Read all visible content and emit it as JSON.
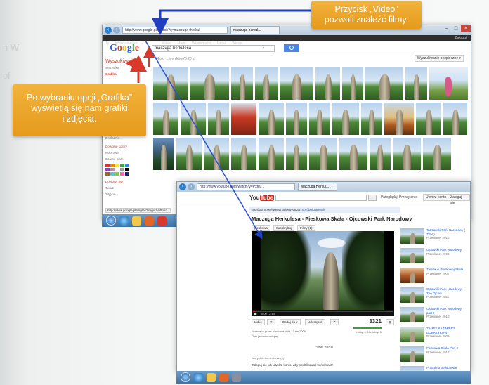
{
  "callouts": {
    "video": [
      "Przycisk „Video”",
      "pozwoli znaleźć filmy."
    ],
    "grafika": [
      "Po wybraniu opcji „Grafika”",
      "wyświetlą się nam grafiki",
      "i zdjęcia."
    ]
  },
  "google_window": {
    "address": "http://www.google.pl/search?q=maczuga+herkul",
    "tab_title": "maczuga herkul...",
    "nav_items": [
      "Ty",
      "Wyszukiwarka",
      "Grafika",
      "Wideo",
      "Mapy",
      "Wiadomości",
      "Gmail",
      "Więcej"
    ],
    "active_nav": "Grafika",
    "nav_right": "Zaloguj",
    "logo": [
      "G",
      "o",
      "o",
      "g",
      "l",
      "e"
    ],
    "query": "maczuga herkulesa",
    "query_badge": "•",
    "sidebar_title": "Wyszukiwarka",
    "sidebar_items": [
      "Wszystko",
      "Grafika"
    ],
    "sidebar_selected": "Grafika",
    "heading_size": "Dowolny rozmiar",
    "size_items": [
      "Duże",
      "Średnie",
      "Ikony",
      "Większe niż...",
      "Dokładnie..."
    ],
    "heading_color": "Dowolne kolory",
    "color_items": [
      "Kolorowe",
      "Czarno-białe"
    ],
    "swatches": [
      "#d33",
      "#e80",
      "#ee3",
      "#3a3",
      "#38c",
      "#a3c",
      "#c8a",
      "#fff",
      "#999",
      "#000",
      "#963",
      "#5cc",
      "#8c4",
      "#f6a",
      "#226"
    ],
    "heading_type": "Dowolny typ",
    "type_items": [
      "Twarz",
      "Zdjęcie"
    ],
    "meta": "Około ... wyników (0,28 s)",
    "safe_search": "Wyszukiwanie bezpieczne ▾",
    "status_url": "http://www.google.pl/imgres?imgurl=http://..."
  },
  "youtube_window": {
    "address": "http://www.youtube.com/watch?v=Pxfk0...",
    "tab_title": "Maczuga Herkul...",
    "logo_you": "You",
    "logo_tube": "Tube",
    "header_links": [
      "Przeglądaj",
      "Przesyłanie"
    ],
    "header_buttons": [
      "Utwórz konto",
      "Zaloguj się"
    ],
    "notice": "Spróbuj nowej wersji odtwarzacza.",
    "notice_links": [
      "Spróbuj",
      "Zamknij"
    ],
    "video_title": "Maczuga Herkulesa - Pieskowa Skała - Ojcowski Park Narodowy",
    "channel_buttons": [
      "pieskowa",
      "Subskrybuj",
      "Filmy (1)"
    ],
    "time": "0:00 / 2:14",
    "actions": [
      "Lubię",
      "Dodaj do ▾",
      "Udostępnij"
    ],
    "views": "3321",
    "uploaded": "Przesłane przez pieskowa dnia 13 sie 2009",
    "likes_meta": "Lubię: 6, Nie lubię: 0",
    "description": "Opis jest niedostępny.",
    "more": "Pokaż więcej",
    "comments_meta": "Wszystkie komentarze (0)",
    "comments_prompt": "Zaloguj się lub Utwórz konto, aby opublikować komentarz!",
    "comments_links": [
      "Zaloguj się",
      "Utwórz konto"
    ],
    "related": [
      {
        "title": "Tatrzański Park Narodowy ( TPN )",
        "meta": "Przesłane: 2010"
      },
      {
        "title": "Ojcowski Park Narodowy",
        "meta": "Przesłane: 2008"
      },
      {
        "title": "Zamek w Pieskowej Skale",
        "meta": "Przesłane: 2007"
      },
      {
        "title": "Ojcowski Park Narodowy – The Ojców",
        "meta": "Przesłane: 2011"
      },
      {
        "title": "Ojcowski Park Narodowy part 2",
        "meta": "Przesłane: 2010"
      },
      {
        "title": "ZAMEK KAZIMIERZ DOBRZYKOW",
        "meta": "Przesłane: 2009"
      },
      {
        "title": "Pieskowa Skała Part 2",
        "meta": "Przesłane: 2012"
      },
      {
        "title": "Pradolina Białuchowe",
        "meta": "Przesłane: 2009"
      }
    ]
  },
  "colors": {
    "callout": "#e9a324",
    "arrow_blue": "#1f3fbf",
    "arrow_red": "#d8392b",
    "yt_red": "#d32a1f"
  }
}
